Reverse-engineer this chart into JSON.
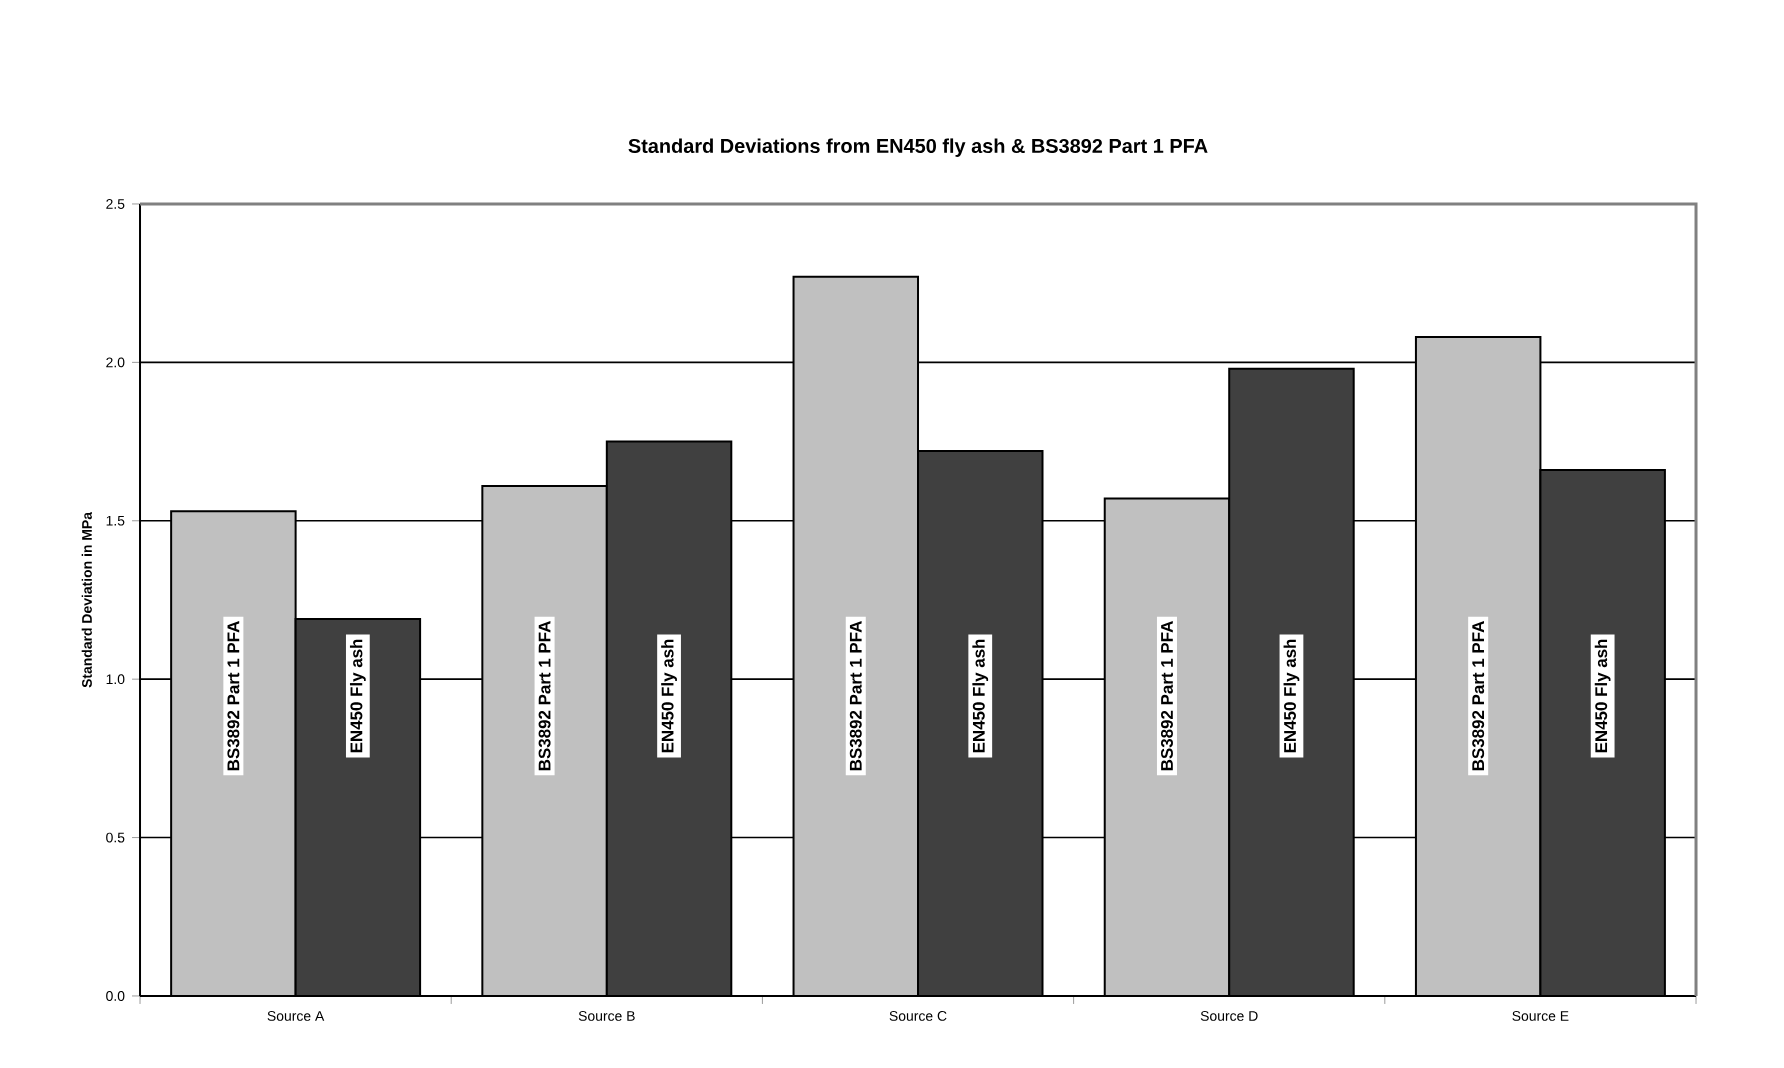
{
  "chart_data": {
    "type": "bar",
    "title": "Standard Deviations from EN450 fly ash & BS3892 Part 1 PFA",
    "ylabel": "Standard Deviation in MPa",
    "categories": [
      "Source A",
      "Source B",
      "Source C",
      "Source D",
      "Source E"
    ],
    "series": [
      {
        "name": "BS3892 Part 1 PFA",
        "color": "#c0c0c0",
        "values": [
          1.53,
          1.61,
          2.27,
          1.57,
          2.08
        ]
      },
      {
        "name": "EN450 Fly ash",
        "color": "#404040",
        "values": [
          1.19,
          1.75,
          1.72,
          1.98,
          1.66
        ]
      }
    ],
    "ylim": [
      0,
      2.5
    ],
    "yticks": [
      {
        "value": 0,
        "label": "0.0"
      },
      {
        "value": 0.5,
        "label": "0.5"
      },
      {
        "value": 1,
        "label": "1.0"
      },
      {
        "value": 1.5,
        "label": "1.5"
      },
      {
        "value": 2,
        "label": "2.0"
      },
      {
        "value": 2.5,
        "label": "2.5"
      }
    ],
    "grid": "y",
    "legend": false
  }
}
